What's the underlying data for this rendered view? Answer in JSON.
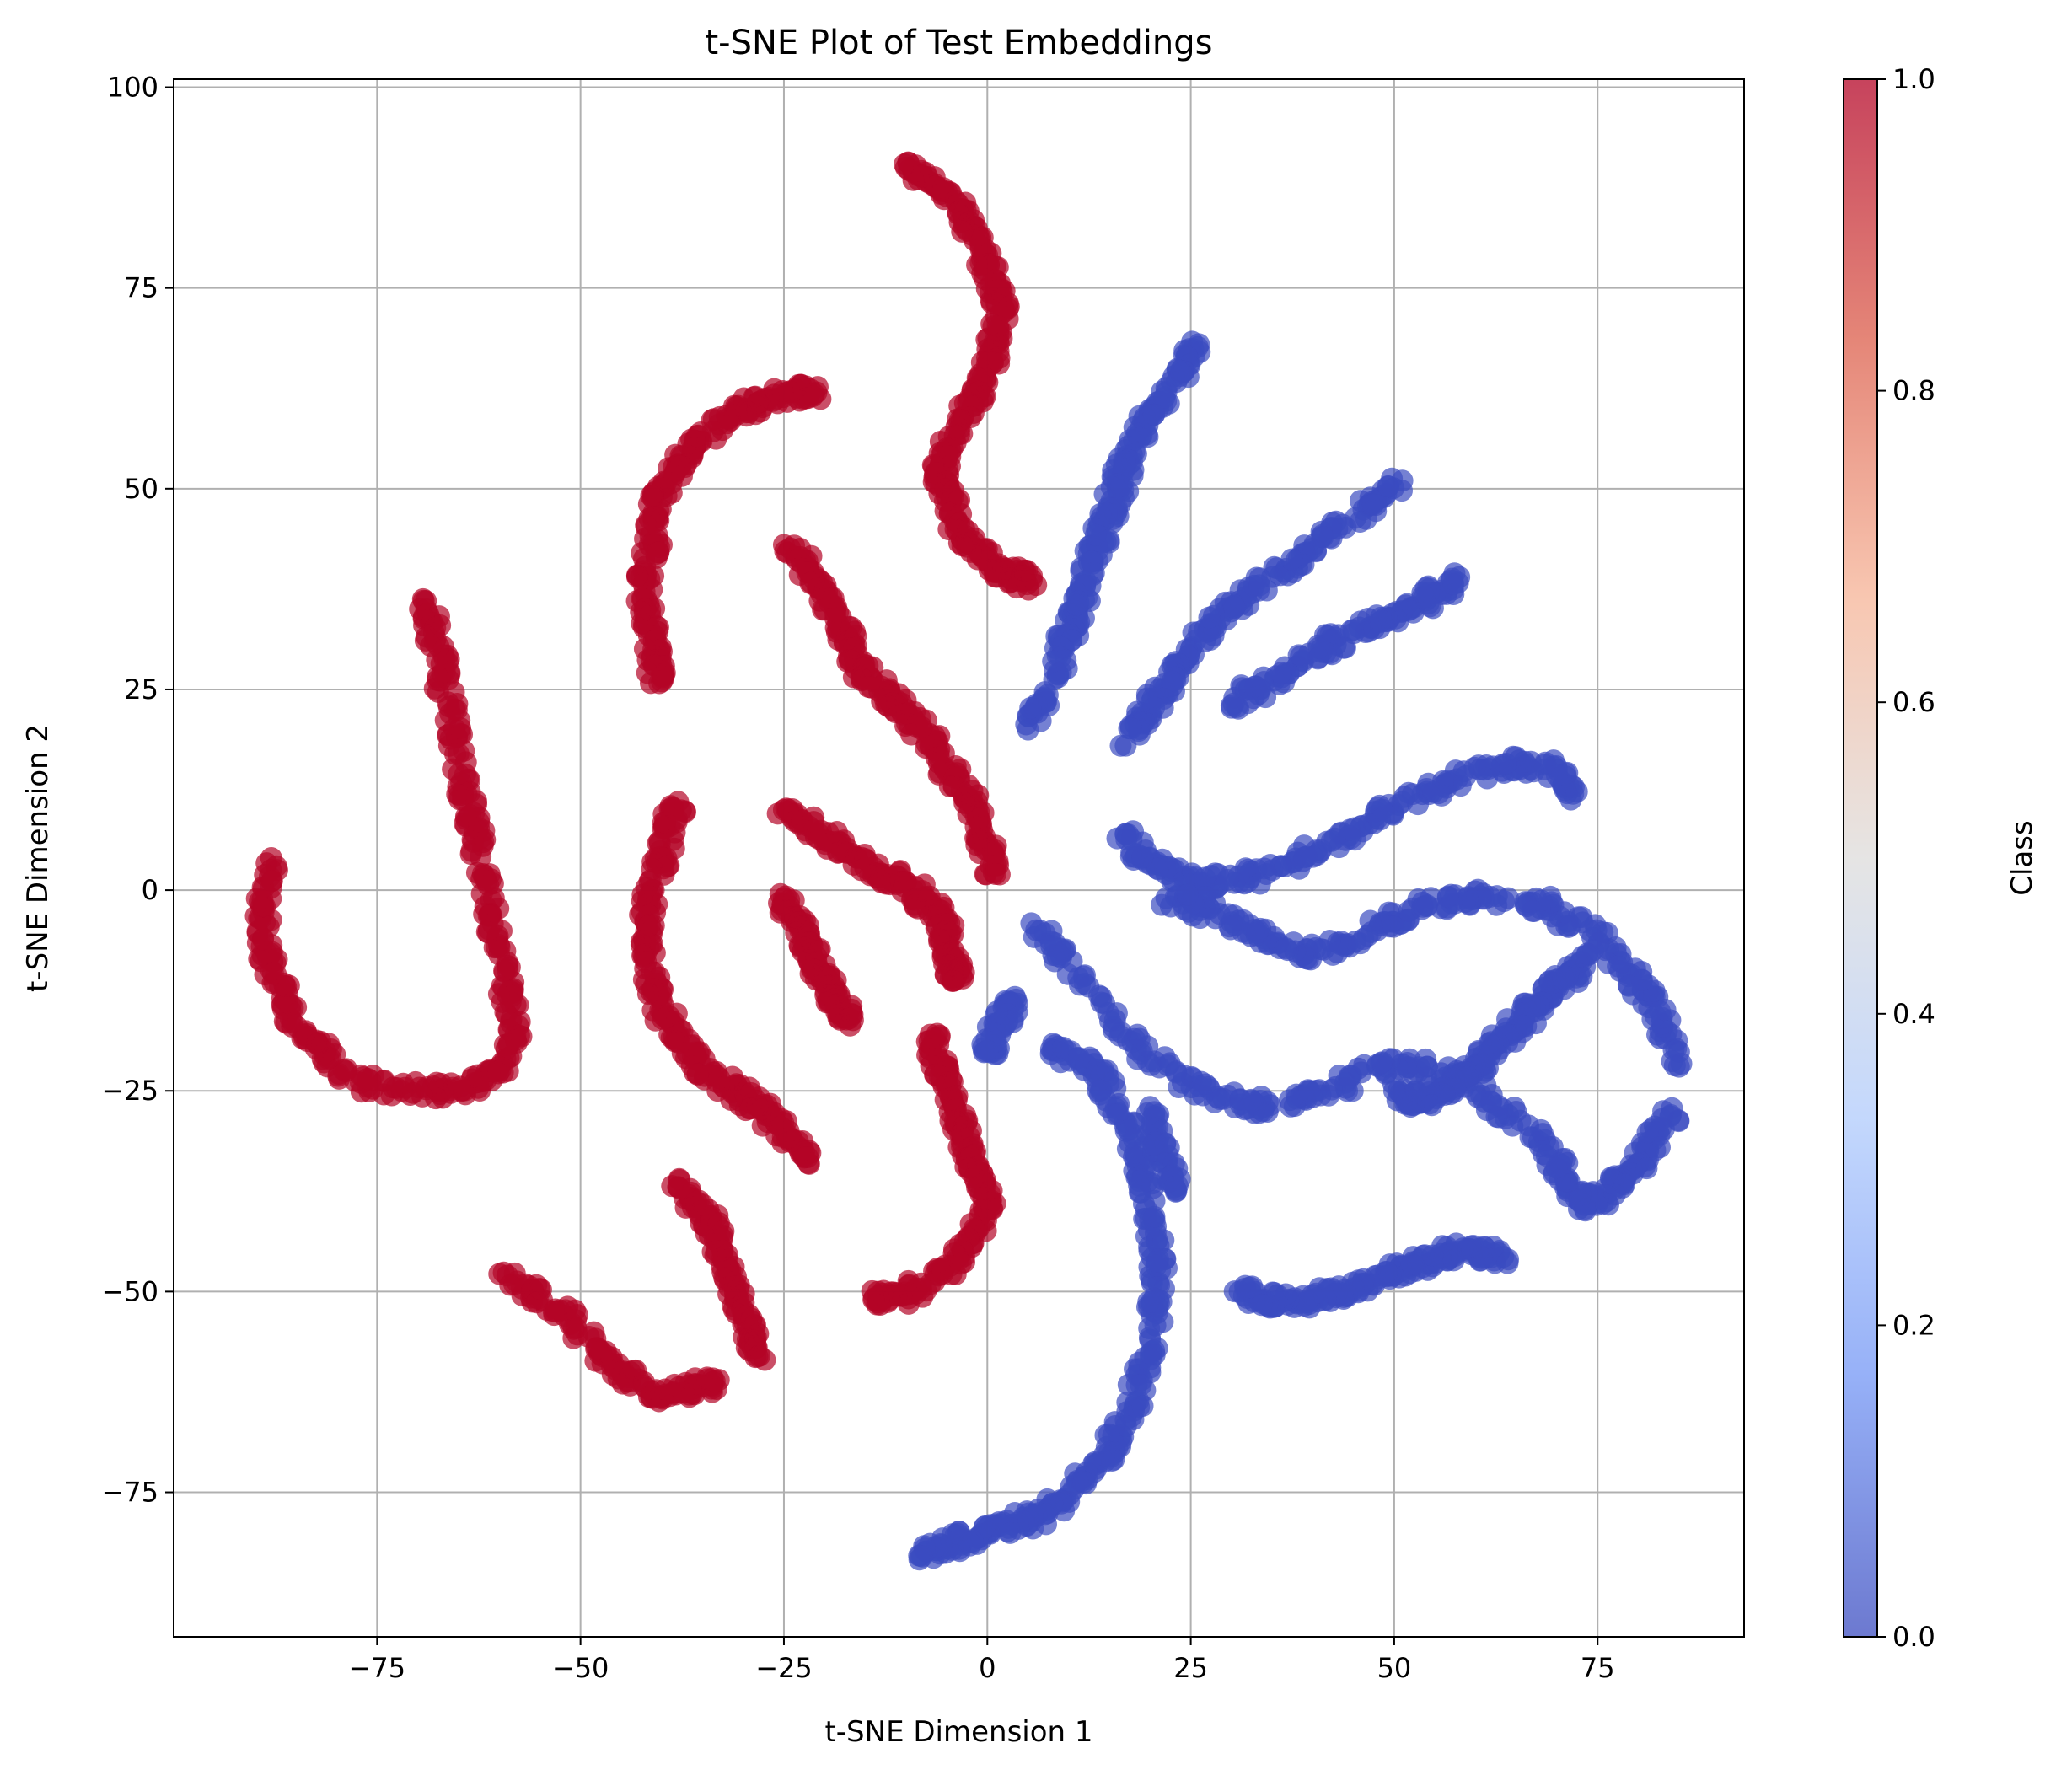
{
  "chart_data": {
    "type": "scatter",
    "title": "t-SNE Plot of Test Embeddings",
    "xlabel": "t-SNE Dimension 1",
    "ylabel": "t-SNE Dimension 2",
    "xlim": [
      -100,
      93
    ],
    "ylim": [
      -93,
      101
    ],
    "xticks": [
      -75,
      -50,
      -25,
      0,
      25,
      50,
      75
    ],
    "yticks": [
      -75,
      -50,
      -25,
      0,
      25,
      50,
      75,
      100
    ],
    "grid": true,
    "colormap": "coolwarm",
    "point_alpha": 0.7,
    "colorbar": {
      "label": "Class",
      "range": [
        0.0,
        1.0
      ],
      "ticks": [
        "0.0",
        "0.2",
        "0.4",
        "0.6",
        "0.8",
        "1.0"
      ],
      "colors": [
        "#3b4cc0",
        "#7396f5",
        "#b0cbfc",
        "#dddcdb",
        "#f6b497",
        "#dc5d4a",
        "#b40426"
      ]
    },
    "classes": [
      {
        "value": 0,
        "color": "#3b4cc0"
      },
      {
        "value": 1,
        "color": "#b40426"
      }
    ],
    "series": [
      {
        "class": 1,
        "x": [
          -10,
          -8,
          -5,
          -3,
          -1,
          0,
          1,
          2,
          1,
          0,
          -1,
          -3,
          -5,
          -6,
          -5,
          -4,
          -2,
          0,
          2,
          4,
          6
        ],
        "y": [
          90,
          89,
          87,
          84,
          81,
          78,
          75,
          72,
          68,
          65,
          62,
          59,
          55,
          52,
          49,
          46,
          43,
          41,
          40,
          39,
          38
        ]
      },
      {
        "class": 1,
        "x": [
          -21,
          -24,
          -27,
          -30,
          -33,
          -36,
          -38,
          -40,
          -41,
          -41,
          -42,
          -42,
          -41,
          -41,
          -40
        ],
        "y": [
          62,
          62,
          61,
          60,
          58,
          56,
          53,
          50,
          47,
          43,
          39,
          35,
          31,
          28,
          26
        ]
      },
      {
        "class": 1,
        "x": [
          -25,
          -22,
          -20,
          -18,
          -17,
          -16,
          -14,
          -12,
          -10,
          -8,
          -6,
          -4,
          -2,
          -1,
          0,
          1
        ],
        "y": [
          43,
          40,
          37,
          34,
          31,
          28,
          26,
          24,
          22,
          20,
          17,
          14,
          11,
          8,
          5,
          2
        ]
      },
      {
        "class": 1,
        "x": [
          -69,
          -68,
          -67,
          -66,
          -65,
          -64,
          -63,
          -62,
          -61,
          -60,
          -59,
          -58,
          -60,
          -63,
          -67,
          -72,
          -77,
          -81,
          -84,
          -86,
          -88,
          -89,
          -89,
          -88
        ],
        "y": [
          36,
          32,
          27,
          22,
          17,
          12,
          7,
          2,
          -3,
          -8,
          -13,
          -18,
          -22,
          -24,
          -25,
          -25,
          -24,
          -21,
          -18,
          -14,
          -10,
          -6,
          -2,
          4
        ]
      },
      {
        "class": 1,
        "x": [
          -38,
          -39,
          -40,
          -41,
          -42,
          -42,
          -41,
          -40,
          -38,
          -36,
          -34,
          -31,
          -28,
          -26,
          -24,
          -22
        ],
        "y": [
          11,
          8,
          4,
          0,
          -4,
          -8,
          -12,
          -15,
          -18,
          -21,
          -23,
          -25,
          -27,
          -29,
          -31,
          -34
        ]
      },
      {
        "class": 1,
        "x": [
          -25,
          -22,
          -19,
          -16,
          -13,
          -10,
          -8,
          -6,
          -5,
          -5,
          -4,
          -3
        ],
        "y": [
          10,
          8,
          6,
          4,
          2,
          1,
          -1,
          -3,
          -5,
          -8,
          -10,
          -11
        ]
      },
      {
        "class": 1,
        "x": [
          -25,
          -24,
          -23,
          -22,
          -21,
          -20,
          -19,
          -18,
          -17
        ],
        "y": [
          -1,
          -3,
          -5,
          -7,
          -9,
          -11,
          -13,
          -15,
          -16
        ]
      },
      {
        "class": 1,
        "x": [
          -7,
          -6,
          -5,
          -4,
          -3,
          -2,
          -1,
          0,
          -1,
          -3,
          -6,
          -9,
          -12,
          -14
        ],
        "y": [
          -18,
          -21,
          -24,
          -27,
          -30,
          -33,
          -36,
          -39,
          -42,
          -45,
          -48,
          -50,
          -51,
          -51
        ]
      },
      {
        "class": 1,
        "x": [
          -38,
          -36,
          -34,
          -33,
          -32,
          -31,
          -30,
          -29,
          -28
        ],
        "y": [
          -37,
          -39,
          -41,
          -44,
          -47,
          -50,
          -53,
          -56,
          -58
        ]
      },
      {
        "class": 1,
        "x": [
          -59,
          -56,
          -52,
          -48,
          -45,
          -42,
          -39,
          -36,
          -33
        ],
        "y": [
          -48,
          -50,
          -53,
          -57,
          -60,
          -62,
          -63,
          -62,
          -61
        ]
      },
      {
        "class": 0,
        "x": [
          26,
          24,
          22,
          20,
          18,
          17,
          16,
          15,
          14,
          13,
          12,
          11,
          10,
          9,
          7,
          5
        ],
        "y": [
          68,
          65,
          62,
          59,
          56,
          53,
          50,
          47,
          44,
          41,
          38,
          35,
          32,
          29,
          24,
          20
        ]
      },
      {
        "class": 0,
        "x": [
          51,
          47,
          43,
          39,
          35,
          31,
          28,
          25,
          23,
          21,
          19,
          17
        ],
        "y": [
          51,
          48,
          45,
          42,
          39,
          36,
          33,
          30,
          27,
          24,
          21,
          18
        ]
      },
      {
        "class": 0,
        "x": [
          58,
          55,
          52,
          49,
          45,
          41,
          37,
          33,
          30
        ],
        "y": [
          39,
          37,
          35,
          34,
          32,
          30,
          27,
          25,
          23
        ]
      },
      {
        "class": 0,
        "x": [
          72,
          70,
          66,
          61,
          56,
          51,
          46,
          41,
          36,
          31,
          26,
          22,
          19,
          17
        ],
        "y": [
          12,
          15,
          16,
          15,
          13,
          11,
          8,
          5,
          3,
          1,
          1,
          2,
          4,
          7
        ]
      },
      {
        "class": 0,
        "x": [
          85,
          83,
          81,
          78,
          74,
          69,
          64,
          59,
          54,
          49,
          44,
          39,
          34,
          30,
          26,
          22
        ],
        "y": [
          -22,
          -17,
          -13,
          -9,
          -5,
          -2,
          -1,
          -1,
          -2,
          -4,
          -7,
          -8,
          -6,
          -4,
          -2,
          -1
        ]
      },
      {
        "class": 0,
        "x": [
          84,
          82,
          80,
          78,
          76,
          73,
          71,
          69,
          64,
          59,
          54,
          49,
          44,
          39,
          34,
          29,
          24,
          19,
          14,
          9,
          6
        ],
        "y": [
          -28,
          -31,
          -34,
          -36,
          -38,
          -39,
          -36,
          -32,
          -28,
          -24,
          -22,
          -22,
          -24,
          -26,
          -27,
          -26,
          -24,
          -20,
          -14,
          -8,
          -5
        ]
      },
      {
        "class": 0,
        "x": [
          74,
          72,
          70,
          68,
          66,
          64,
          62,
          60,
          58,
          56,
          54,
          52,
          50
        ],
        "y": [
          -8,
          -10,
          -12,
          -14,
          -16,
          -18,
          -20,
          -22,
          -24,
          -25,
          -26,
          -26,
          -25
        ]
      },
      {
        "class": 0,
        "x": [
          64,
          61,
          58,
          55,
          52,
          49,
          46,
          43,
          40,
          37,
          34,
          31
        ],
        "y": [
          -46,
          -45,
          -45,
          -46,
          -47,
          -48,
          -49,
          -50,
          -51,
          -51,
          -51,
          -50
        ]
      },
      {
        "class": 0,
        "x": [
          8,
          11,
          14,
          16,
          18,
          19,
          20,
          21,
          21,
          20,
          19,
          17,
          15,
          12,
          9,
          6,
          3,
          0,
          -3,
          -6,
          -8
        ],
        "y": [
          -20,
          -21,
          -23,
          -27,
          -31,
          -36,
          -41,
          -46,
          -51,
          -56,
          -61,
          -66,
          -70,
          -73,
          -76,
          -78,
          -79,
          -80,
          -81,
          -82,
          -83
        ]
      },
      {
        "class": 0,
        "x": [
          3,
          2,
          1,
          0
        ],
        "y": [
          -14,
          -16,
          -18,
          -20
        ]
      },
      {
        "class": 0,
        "x": [
          20,
          21,
          22,
          23
        ],
        "y": [
          -27,
          -31,
          -34,
          -37
        ]
      }
    ]
  }
}
